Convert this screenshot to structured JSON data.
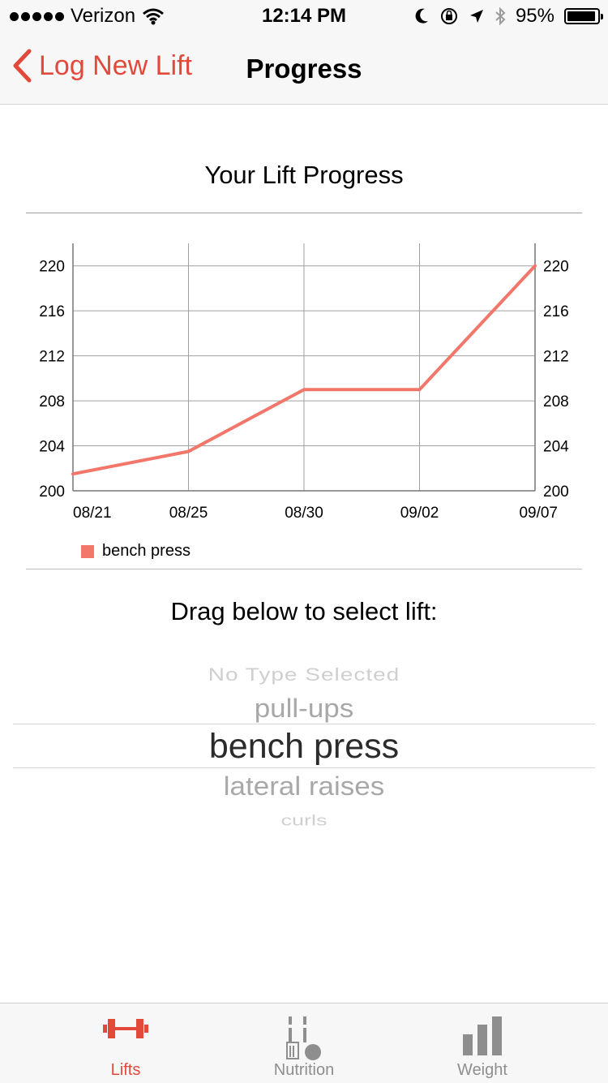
{
  "status_bar": {
    "carrier": "Verizon",
    "time": "12:14 PM",
    "battery": "95%",
    "battery_level": 0.95
  },
  "nav": {
    "back_label": "Log New Lift",
    "title": "Progress"
  },
  "chart_title": "Your Lift Progress",
  "chart_data": {
    "type": "line",
    "categories": [
      "08/21",
      "08/25",
      "08/30",
      "09/02",
      "09/07"
    ],
    "series": [
      {
        "name": "bench press",
        "values": [
          201.5,
          203.5,
          209,
          209,
          220
        ]
      }
    ],
    "ylim": [
      200,
      222
    ],
    "yticks": [
      200,
      204,
      208,
      212,
      216,
      220
    ],
    "grid": true,
    "legend": "bottom-left",
    "line_color": "#f2766a"
  },
  "picker": {
    "label": "Drag below to select lift:",
    "options": [
      "No Type Selected",
      "pull-ups",
      "bench press",
      "lateral raises",
      "curls"
    ],
    "selected": "bench press"
  },
  "tabs": [
    {
      "label": "Lifts",
      "icon": "dumbbell-icon",
      "active": true
    },
    {
      "label": "Nutrition",
      "icon": "fork-knife-icon",
      "active": false
    },
    {
      "label": "Weight",
      "icon": "bar-chart-icon",
      "active": false
    }
  ],
  "colors": {
    "accent": "#e3493b",
    "series": "#f2766a",
    "inactive_tab": "#8e8e8e"
  }
}
